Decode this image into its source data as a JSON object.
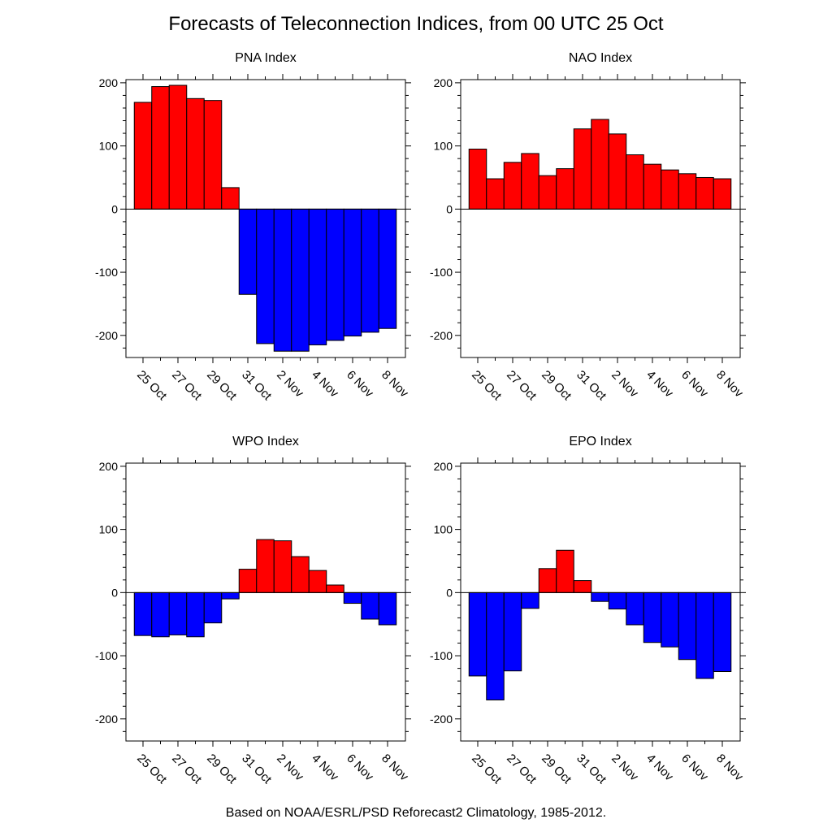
{
  "page": {
    "title": "Forecasts of Teleconnection Indices, from 00 UTC 25 Oct",
    "footer": "Based on NOAA/ESRL/PSD Reforecast2 Climatology, 1985-2012."
  },
  "colors": {
    "positive": "#ff0000",
    "negative": "#0000ff",
    "outline": "#000000"
  },
  "chart_data": [
    {
      "type": "bar",
      "title": "PNA Index",
      "categories": [
        "25 Oct",
        "26 Oct",
        "27 Oct",
        "28 Oct",
        "29 Oct",
        "30 Oct",
        "31 Oct",
        "1 Nov",
        "2 Nov",
        "3 Nov",
        "4 Nov",
        "5 Nov",
        "6 Nov",
        "7 Nov",
        "8 Nov"
      ],
      "tick_labels": [
        "25 Oct",
        "27 Oct",
        "29 Oct",
        "31 Oct",
        "2 Nov",
        "4 Nov",
        "6 Nov",
        "8 Nov"
      ],
      "values": [
        169,
        194,
        196,
        175,
        172,
        34,
        -135,
        -213,
        -225,
        -225,
        -215,
        -208,
        -201,
        -195,
        -189
      ],
      "ylim": [
        -235,
        205
      ],
      "yticks": [
        -200,
        -100,
        0,
        100,
        200
      ],
      "xlabel": "",
      "ylabel": ""
    },
    {
      "type": "bar",
      "title": "NAO Index",
      "categories": [
        "25 Oct",
        "26 Oct",
        "27 Oct",
        "28 Oct",
        "29 Oct",
        "30 Oct",
        "31 Oct",
        "1 Nov",
        "2 Nov",
        "3 Nov",
        "4 Nov",
        "5 Nov",
        "6 Nov",
        "7 Nov",
        "8 Nov"
      ],
      "tick_labels": [
        "25 Oct",
        "27 Oct",
        "29 Oct",
        "31 Oct",
        "2 Nov",
        "4 Nov",
        "6 Nov",
        "8 Nov"
      ],
      "values": [
        95,
        48,
        74,
        88,
        53,
        64,
        127,
        142,
        119,
        86,
        71,
        62,
        56,
        50,
        48
      ],
      "ylim": [
        -235,
        205
      ],
      "yticks": [
        -200,
        -100,
        0,
        100,
        200
      ],
      "xlabel": "",
      "ylabel": ""
    },
    {
      "type": "bar",
      "title": "WPO Index",
      "categories": [
        "25 Oct",
        "26 Oct",
        "27 Oct",
        "28 Oct",
        "29 Oct",
        "30 Oct",
        "31 Oct",
        "1 Nov",
        "2 Nov",
        "3 Nov",
        "4 Nov",
        "5 Nov",
        "6 Nov",
        "7 Nov",
        "8 Nov"
      ],
      "tick_labels": [
        "25 Oct",
        "27 Oct",
        "29 Oct",
        "31 Oct",
        "2 Nov",
        "4 Nov",
        "6 Nov",
        "8 Nov"
      ],
      "values": [
        -68,
        -70,
        -67,
        -70,
        -48,
        -10,
        37,
        84,
        82,
        57,
        35,
        12,
        -17,
        -42,
        -51
      ],
      "ylim": [
        -235,
        205
      ],
      "yticks": [
        -200,
        -100,
        0,
        100,
        200
      ],
      "xlabel": "",
      "ylabel": ""
    },
    {
      "type": "bar",
      "title": "EPO Index",
      "categories": [
        "25 Oct",
        "26 Oct",
        "27 Oct",
        "28 Oct",
        "29 Oct",
        "30 Oct",
        "31 Oct",
        "1 Nov",
        "2 Nov",
        "3 Nov",
        "4 Nov",
        "5 Nov",
        "6 Nov",
        "7 Nov",
        "8 Nov"
      ],
      "tick_labels": [
        "25 Oct",
        "27 Oct",
        "29 Oct",
        "31 Oct",
        "2 Nov",
        "4 Nov",
        "6 Nov",
        "8 Nov"
      ],
      "values": [
        -132,
        -170,
        -124,
        -25,
        38,
        67,
        19,
        -14,
        -26,
        -51,
        -79,
        -86,
        -106,
        -136,
        -125
      ],
      "ylim": [
        -235,
        205
      ],
      "yticks": [
        -200,
        -100,
        0,
        100,
        200
      ],
      "xlabel": "",
      "ylabel": ""
    }
  ]
}
